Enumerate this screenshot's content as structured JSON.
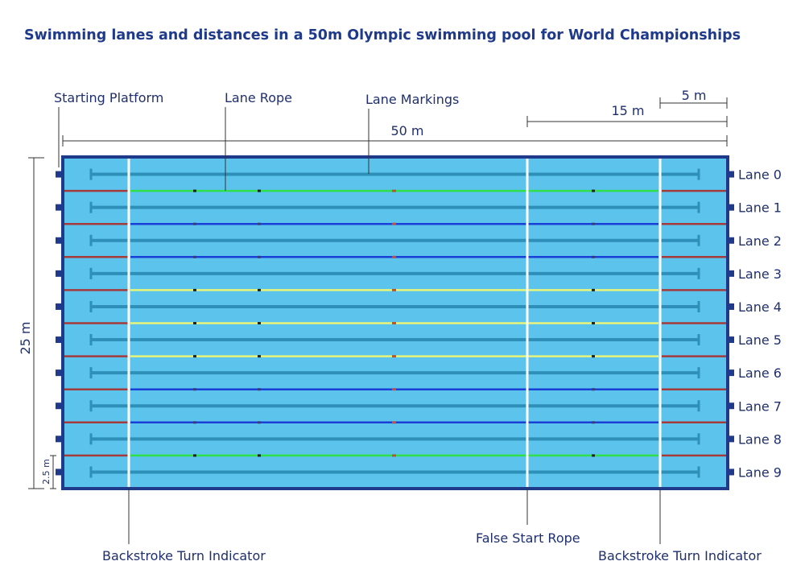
{
  "title": "Swimming lanes and distances in a 50m Olympic swimming pool for World Championships",
  "labels": {
    "starting_platform": "Starting Platform",
    "lane_rope": "Lane Rope",
    "lane_markings": "Lane Markings",
    "backstroke_left": "Backstroke Turn Indicator",
    "false_start": "False Start Rope",
    "backstroke_right": "Backstroke Turn Indicator"
  },
  "dimensions": {
    "length": "50 m",
    "false_start_distance": "15 m",
    "backstroke_distance": "5 m",
    "width": "25 m",
    "lane_width": "2.5 m"
  },
  "lanes": [
    "Lane 0",
    "Lane 1",
    "Lane 2",
    "Lane 3",
    "Lane 4",
    "Lane 5",
    "Lane 6",
    "Lane 7",
    "Lane 8",
    "Lane 9"
  ],
  "rope_colors": [
    "green",
    "blue",
    "blue",
    "yellow",
    "yellow",
    "yellow",
    "blue",
    "blue",
    "green"
  ],
  "colors": {
    "water": "#5bc3ec",
    "pool_border": "#1f3a8a",
    "green": "#2fe04a",
    "blue": "#1a3fd6",
    "yellow": "#e8f57a",
    "rope_end_red": "#a53a3a",
    "lane_marking": "#2e90b8",
    "text": "#1f2f6e"
  }
}
